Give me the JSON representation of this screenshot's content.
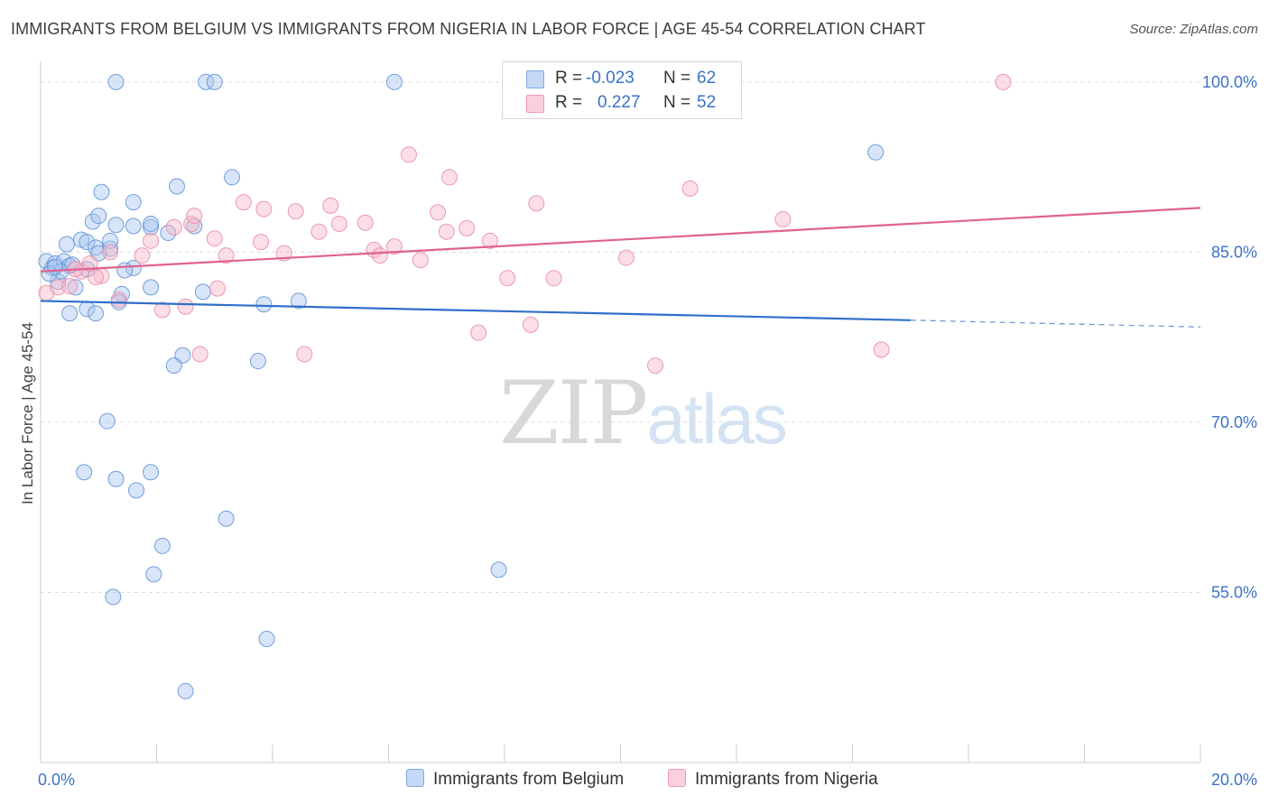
{
  "header": {
    "title": "IMMIGRANTS FROM BELGIUM VS IMMIGRANTS FROM NIGERIA IN LABOR FORCE | AGE 45-54 CORRELATION CHART",
    "source": "Source: ZipAtlas.com"
  },
  "legend": {
    "rows": [
      {
        "r_label": "R =",
        "r_value": "-0.023",
        "n_label": "N =",
        "n_value": "62",
        "color": "#a9c6ef"
      },
      {
        "r_label": "R =",
        "r_value": "0.227",
        "n_label": "N =",
        "n_value": "52",
        "color": "#f6b6c8"
      }
    ]
  },
  "bottom_legend": {
    "belgium": "Immigrants from Belgium",
    "nigeria": "Immigrants from Nigeria"
  },
  "watermark": {
    "zip": "ZIP",
    "atlas": "atlas"
  },
  "chart_data": {
    "type": "scatter",
    "title": "IMMIGRANTS FROM BELGIUM VS IMMIGRANTS FROM NIGERIA IN LABOR FORCE | AGE 45-54 CORRELATION CHART",
    "xlabel": "",
    "ylabel": "In Labor Force | Age 45-54",
    "xlim": [
      0,
      20
    ],
    "ylim": [
      40,
      101.5
    ],
    "x_tick_labels": [
      {
        "value": 0,
        "label": "0.0%"
      },
      {
        "value": 20,
        "label": "20.0%"
      }
    ],
    "y_tick_labels": [
      {
        "value": 100,
        "label": "100.0%"
      },
      {
        "value": 85,
        "label": "85.0%"
      },
      {
        "value": 70,
        "label": "70.0%"
      },
      {
        "value": 55,
        "label": "55.0%"
      }
    ],
    "series": [
      {
        "name": "Immigrants from Belgium",
        "color": "#5b8fd6",
        "fill": "#a9c6ef",
        "trend": {
          "x0": 0.0,
          "y0": 80.7,
          "x1": 15.0,
          "y1": 79.0,
          "dash_to_x": 20.0,
          "dash_to_y": 78.4,
          "color": "#2f6fcb"
        },
        "points": [
          [
            0.1,
            84.2
          ],
          [
            0.2,
            83.6
          ],
          [
            0.25,
            84.0
          ],
          [
            0.3,
            82.4
          ],
          [
            0.4,
            84.2
          ],
          [
            0.5,
            83.8
          ],
          [
            0.35,
            83.3
          ],
          [
            0.8,
            83.5
          ],
          [
            1.6,
            83.6
          ],
          [
            0.6,
            81.9
          ],
          [
            1.4,
            81.3
          ],
          [
            1.9,
            81.9
          ],
          [
            0.45,
            85.7
          ],
          [
            0.7,
            86.1
          ],
          [
            0.8,
            85.9
          ],
          [
            0.95,
            85.4
          ],
          [
            1.2,
            85.3
          ],
          [
            1.0,
            84.9
          ],
          [
            1.2,
            86.0
          ],
          [
            0.9,
            87.7
          ],
          [
            1.0,
            88.2
          ],
          [
            1.3,
            87.4
          ],
          [
            1.6,
            87.3
          ],
          [
            1.9,
            87.2
          ],
          [
            1.9,
            87.5
          ],
          [
            2.2,
            86.7
          ],
          [
            2.65,
            87.3
          ],
          [
            1.05,
            90.3
          ],
          [
            1.6,
            89.4
          ],
          [
            2.35,
            90.8
          ],
          [
            3.3,
            91.6
          ],
          [
            0.8,
            80.0
          ],
          [
            0.5,
            79.6
          ],
          [
            0.95,
            79.6
          ],
          [
            1.35,
            80.6
          ],
          [
            2.8,
            81.5
          ],
          [
            3.85,
            80.4
          ],
          [
            4.45,
            80.7
          ],
          [
            2.45,
            75.9
          ],
          [
            2.3,
            75.0
          ],
          [
            3.75,
            75.4
          ],
          [
            1.15,
            70.1
          ],
          [
            0.75,
            65.6
          ],
          [
            1.3,
            65.0
          ],
          [
            1.65,
            64.0
          ],
          [
            1.9,
            65.6
          ],
          [
            3.2,
            61.5
          ],
          [
            2.1,
            59.1
          ],
          [
            1.95,
            56.6
          ],
          [
            1.25,
            54.6
          ],
          [
            3.9,
            50.9
          ],
          [
            2.5,
            46.3
          ],
          [
            7.9,
            57.0
          ],
          [
            1.3,
            100.0
          ],
          [
            2.85,
            100.0
          ],
          [
            3.0,
            100.0
          ],
          [
            6.1,
            100.0
          ],
          [
            14.4,
            93.8
          ],
          [
            0.15,
            83.1
          ],
          [
            0.25,
            83.7
          ],
          [
            0.55,
            83.9
          ],
          [
            1.45,
            83.4
          ]
        ]
      },
      {
        "name": "Immigrants from Nigeria",
        "color": "#e889a6",
        "fill": "#f6b6c8",
        "trend": {
          "x0": 0.0,
          "y0": 83.3,
          "x1": 20.0,
          "y1": 88.9,
          "color": "#e0628c"
        },
        "points": [
          [
            0.1,
            81.4
          ],
          [
            0.3,
            81.9
          ],
          [
            0.5,
            82.0
          ],
          [
            0.7,
            83.3
          ],
          [
            1.05,
            82.9
          ],
          [
            0.6,
            83.5
          ],
          [
            0.85,
            84.0
          ],
          [
            1.2,
            85.0
          ],
          [
            1.75,
            84.7
          ],
          [
            1.9,
            86.0
          ],
          [
            2.3,
            87.2
          ],
          [
            2.6,
            87.5
          ],
          [
            2.65,
            88.2
          ],
          [
            3.0,
            86.2
          ],
          [
            3.2,
            84.7
          ],
          [
            3.5,
            89.4
          ],
          [
            3.8,
            85.9
          ],
          [
            3.85,
            88.8
          ],
          [
            4.2,
            84.9
          ],
          [
            4.4,
            88.6
          ],
          [
            4.8,
            86.8
          ],
          [
            5.0,
            89.1
          ],
          [
            5.15,
            87.5
          ],
          [
            5.6,
            87.6
          ],
          [
            5.75,
            85.2
          ],
          [
            5.85,
            84.7
          ],
          [
            6.1,
            85.5
          ],
          [
            6.35,
            93.6
          ],
          [
            6.55,
            84.3
          ],
          [
            6.85,
            88.5
          ],
          [
            7.0,
            86.8
          ],
          [
            7.05,
            91.6
          ],
          [
            7.35,
            87.1
          ],
          [
            7.75,
            86.0
          ],
          [
            7.55,
            77.9
          ],
          [
            8.05,
            82.7
          ],
          [
            8.55,
            89.3
          ],
          [
            8.45,
            78.6
          ],
          [
            8.85,
            82.7
          ],
          [
            10.1,
            84.5
          ],
          [
            10.6,
            75.0
          ],
          [
            11.2,
            90.6
          ],
          [
            12.8,
            87.9
          ],
          [
            14.5,
            76.4
          ],
          [
            16.6,
            100.0
          ],
          [
            0.95,
            82.8
          ],
          [
            1.35,
            80.8
          ],
          [
            2.1,
            79.9
          ],
          [
            2.5,
            80.2
          ],
          [
            2.75,
            76.0
          ],
          [
            3.05,
            81.8
          ],
          [
            4.55,
            76.0
          ]
        ]
      }
    ]
  }
}
